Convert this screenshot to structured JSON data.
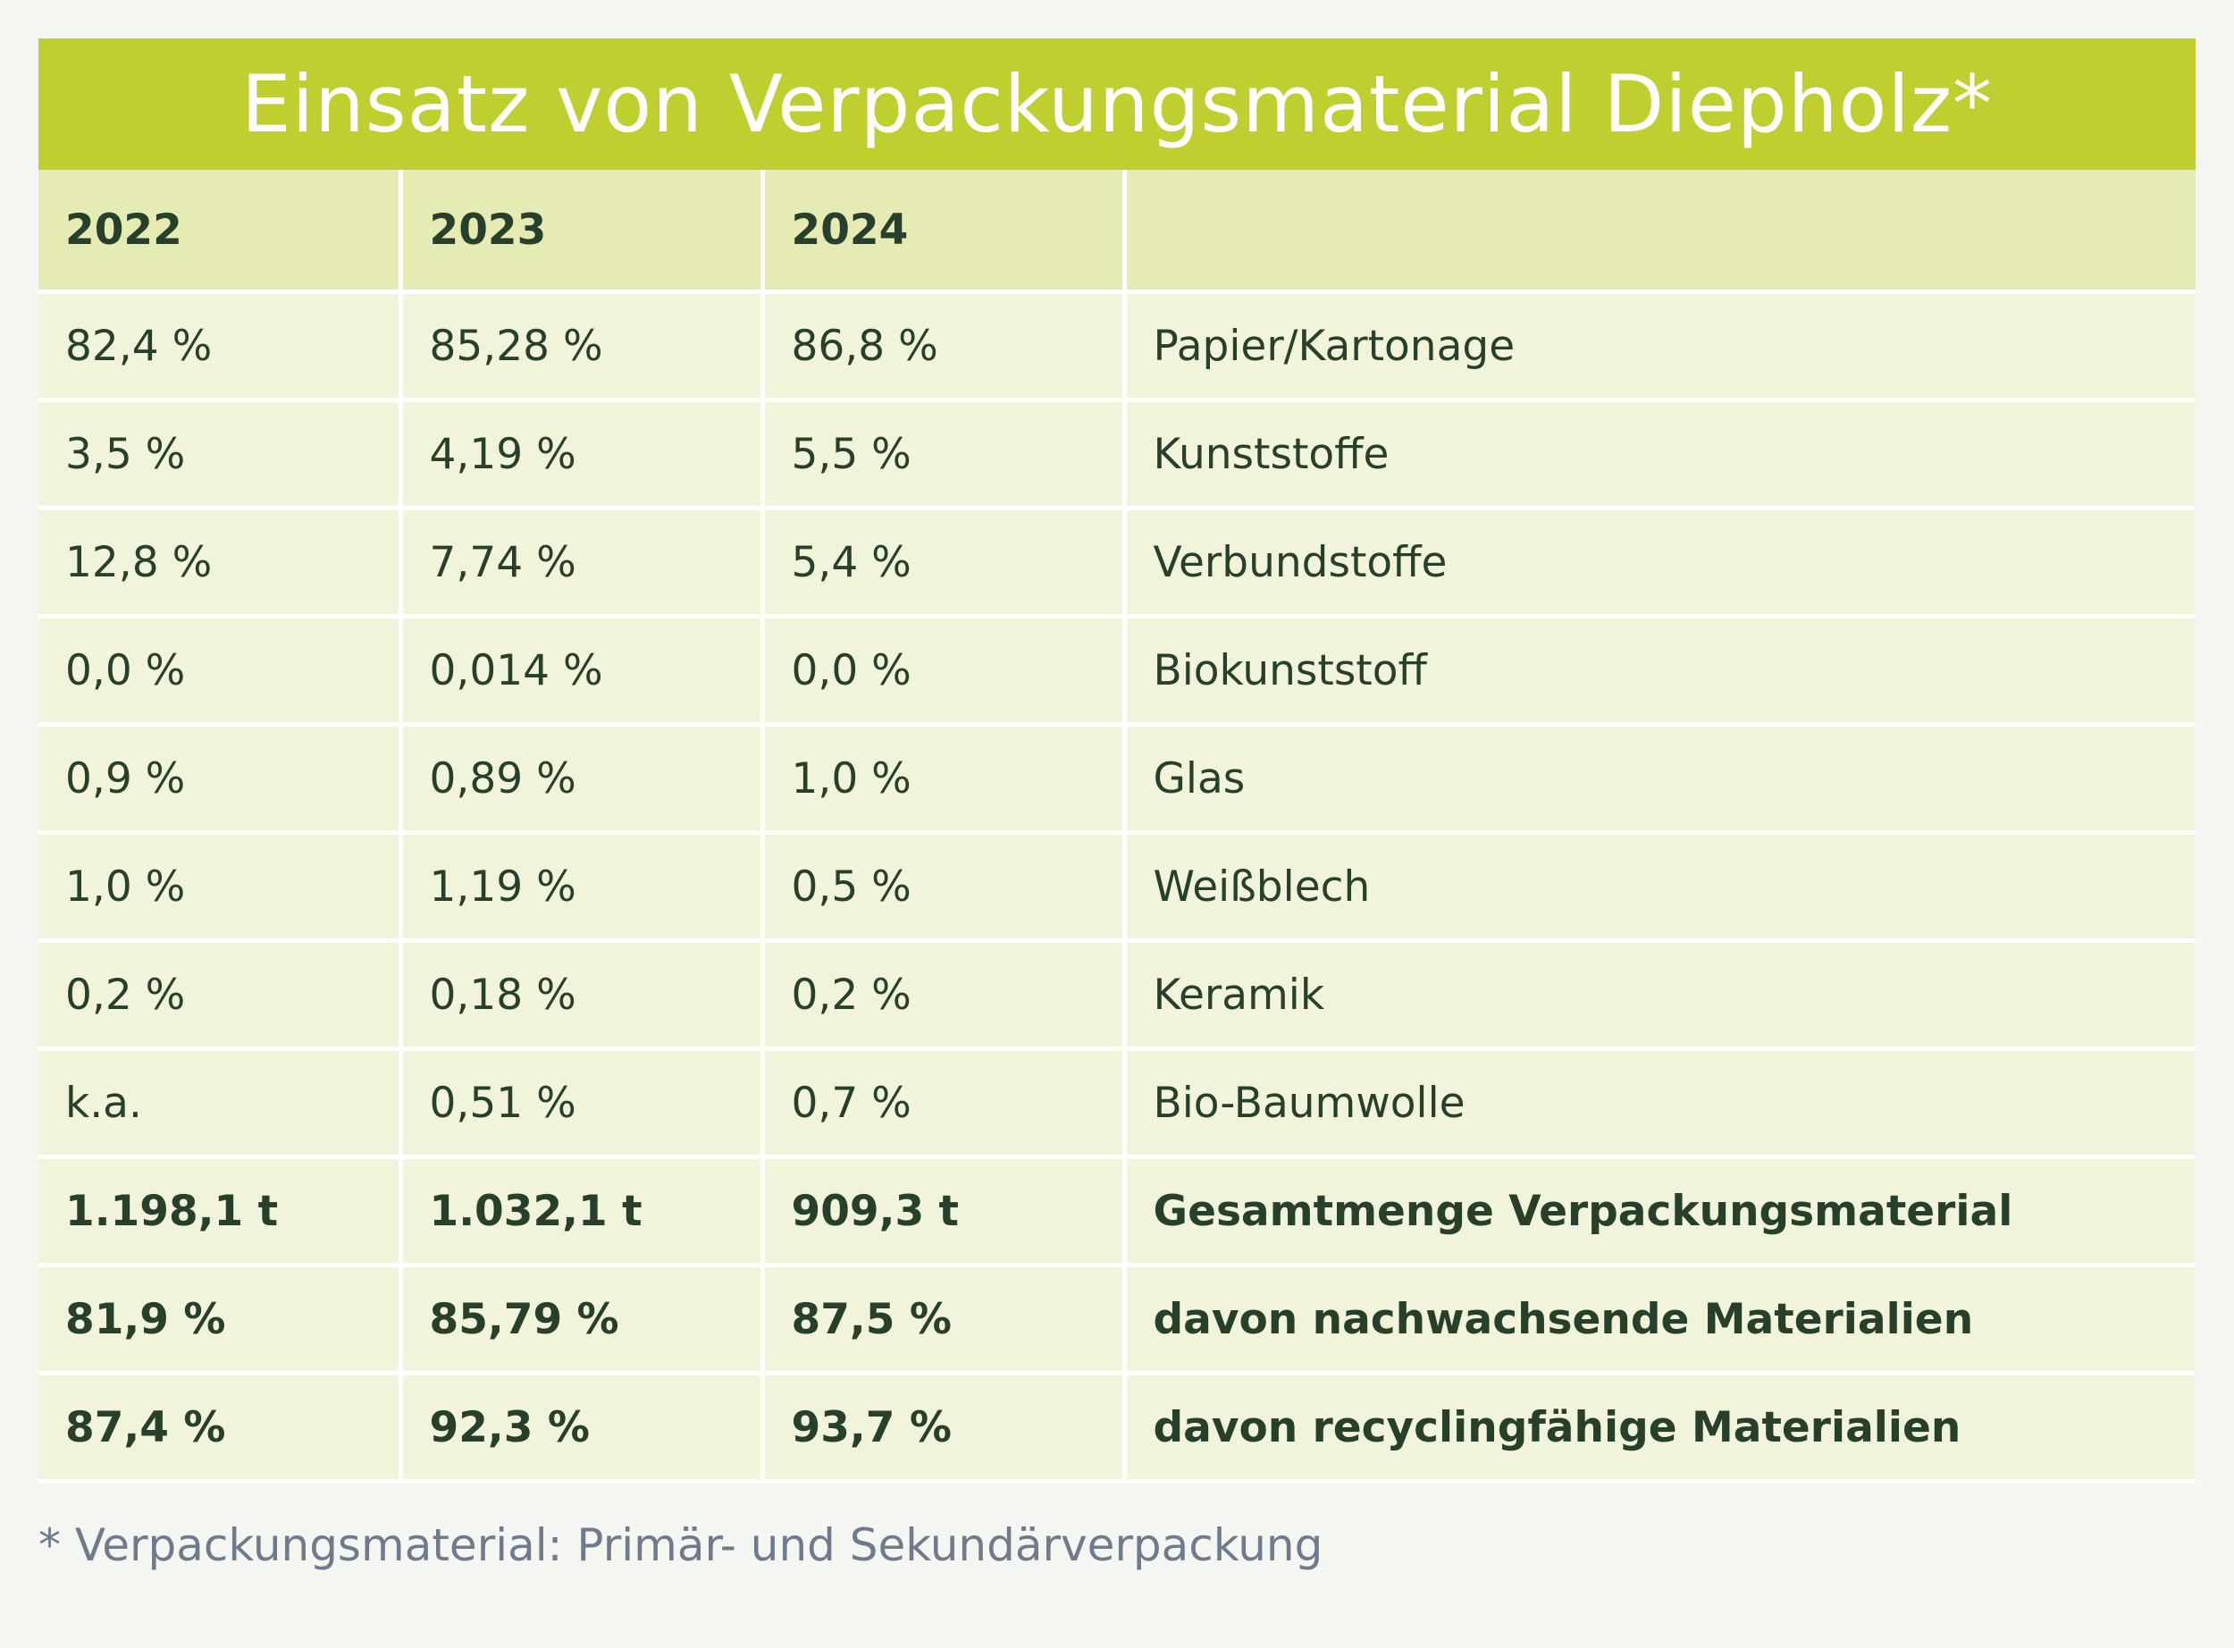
{
  "title": "Einsatz von Verpackungsmaterial Diepholz*",
  "footnote": "* Verpackungsmaterial: Primär- und Sekundärverpackung",
  "colors": {
    "title_background": "#c0cf30",
    "header_background": "#e6eab3",
    "row_background": "#f1f4da",
    "text": "#27402c",
    "footnote_text": "#6f7a8c"
  },
  "chart_data": {
    "type": "table",
    "columns": [
      "2022",
      "2023",
      "2024",
      ""
    ],
    "rows": [
      {
        "label": "Papier/Kartonage",
        "values": [
          "82,4 %",
          "85,28 %",
          "86,8 %"
        ],
        "bold": false
      },
      {
        "label": "Kunststoffe",
        "values": [
          "3,5 %",
          "4,19 %",
          "5,5 %"
        ],
        "bold": false
      },
      {
        "label": "Verbundstoffe",
        "values": [
          "12,8 %",
          "7,74 %",
          "5,4 %"
        ],
        "bold": false
      },
      {
        "label": "Biokunststoff",
        "values": [
          "0,0 %",
          "0,014 %",
          "0,0 %"
        ],
        "bold": false
      },
      {
        "label": "Glas",
        "values": [
          "0,9 %",
          "0,89 %",
          "1,0 %"
        ],
        "bold": false
      },
      {
        "label": "Weißblech",
        "values": [
          "1,0 %",
          "1,19 %",
          "0,5 %"
        ],
        "bold": false
      },
      {
        "label": "Keramik",
        "values": [
          "0,2 %",
          "0,18 %",
          "0,2 %"
        ],
        "bold": false
      },
      {
        "label": "Bio-Baumwolle",
        "values": [
          "k.a.",
          "0,51 %",
          "0,7 %"
        ],
        "bold": false
      },
      {
        "label": "Gesamtmenge Verpackungsmaterial",
        "values": [
          "1.198,1 t",
          "1.032,1 t",
          "909,3 t"
        ],
        "bold": true
      },
      {
        "label": "davon nachwachsende Materialien",
        "values": [
          "81,9 %",
          "85,79 %",
          "87,5 %"
        ],
        "bold": true
      },
      {
        "label": "davon recyclingfähige Materialien",
        "values": [
          "87,4 %",
          "92,3 %",
          "93,7 %"
        ],
        "bold": true
      }
    ]
  }
}
